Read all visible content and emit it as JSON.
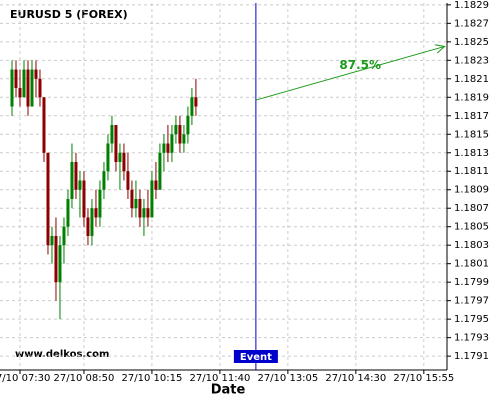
{
  "chart_data": {
    "type": "candlestick",
    "title": "EURUSD 5 (FOREX)",
    "xlabel": "Date",
    "watermark": "www.delkos.com",
    "x": [
      440,
      445,
      450,
      455,
      460,
      465,
      470,
      475,
      480,
      485,
      490,
      495,
      500,
      505,
      510,
      515,
      520,
      525,
      530,
      535,
      540,
      545,
      550,
      555,
      560,
      565,
      570,
      575,
      580,
      585,
      590,
      595,
      600,
      605,
      610,
      615,
      620,
      625,
      630,
      635,
      640,
      645,
      650,
      655,
      660,
      665,
      670
    ],
    "open": [
      1.1818,
      1.1822,
      1.182,
      1.1819,
      1.1822,
      1.1818,
      1.1822,
      1.1821,
      1.1819,
      1.1813,
      1.1803,
      1.1804,
      1.1799,
      1.1803,
      1.1805,
      1.1808,
      1.1812,
      1.1809,
      1.181,
      1.1806,
      1.1804,
      1.1807,
      1.1806,
      1.1809,
      1.1811,
      1.1814,
      1.1816,
      1.1812,
      1.1813,
      1.1811,
      1.1809,
      1.1807,
      1.1808,
      1.1806,
      1.1807,
      1.1806,
      1.181,
      1.1809,
      1.1813,
      1.1814,
      1.1813,
      1.1815,
      1.1816,
      1.1814,
      1.1815,
      1.1817,
      1.1819
    ],
    "high": [
      1.1823,
      1.1823,
      1.1822,
      1.1823,
      1.1823,
      1.1823,
      1.1823,
      1.1822,
      1.1819,
      1.1813,
      1.1805,
      1.1806,
      1.1804,
      1.1806,
      1.1809,
      1.1814,
      1.1813,
      1.1811,
      1.1811,
      1.1807,
      1.1808,
      1.1809,
      1.181,
      1.1812,
      1.1815,
      1.1817,
      1.1816,
      1.1814,
      1.1814,
      1.1813,
      1.181,
      1.181,
      1.1809,
      1.1808,
      1.1809,
      1.1811,
      1.1812,
      1.1814,
      1.1815,
      1.1816,
      1.1816,
      1.1817,
      1.1817,
      1.1816,
      1.1818,
      1.182,
      1.1821
    ],
    "low": [
      1.1817,
      1.1819,
      1.1818,
      1.1819,
      1.1817,
      1.1818,
      1.1819,
      1.1818,
      1.1812,
      1.1802,
      1.1801,
      1.1797,
      1.1795,
      1.1801,
      1.1804,
      1.1807,
      1.1808,
      1.1806,
      1.1805,
      1.1803,
      1.1803,
      1.1805,
      1.1805,
      1.1808,
      1.181,
      1.1813,
      1.1811,
      1.1809,
      1.181,
      1.1808,
      1.1806,
      1.1806,
      1.1805,
      1.1804,
      1.1805,
      1.1806,
      1.1808,
      1.1809,
      1.1811,
      1.1812,
      1.1812,
      1.1814,
      1.1813,
      1.1813,
      1.1814,
      1.1816,
      1.1817
    ],
    "close": [
      1.1822,
      1.182,
      1.1819,
      1.1822,
      1.1818,
      1.1822,
      1.1821,
      1.1819,
      1.1813,
      1.1803,
      1.1804,
      1.1799,
      1.1803,
      1.1805,
      1.1808,
      1.1812,
      1.1809,
      1.181,
      1.1806,
      1.1804,
      1.1807,
      1.1806,
      1.1809,
      1.1811,
      1.1814,
      1.1816,
      1.1812,
      1.1813,
      1.1811,
      1.1809,
      1.1807,
      1.1808,
      1.1806,
      1.1807,
      1.1806,
      1.181,
      1.1809,
      1.1813,
      1.1814,
      1.1813,
      1.1815,
      1.1816,
      1.1814,
      1.1815,
      1.1817,
      1.1819,
      1.1818
    ],
    "up_color": "#008000",
    "down_color": "#8b0000",
    "xlim": [
      425,
      984
    ],
    "ylim": [
      1.17895,
      1.18292
    ],
    "xticks": [
      {
        "value": 450,
        "label": "27/10 07:30"
      },
      {
        "value": 530,
        "label": "27/10 08:50"
      },
      {
        "value": 615,
        "label": "27/10 10:15"
      },
      {
        "value": 700,
        "label": "27/10 11:40"
      },
      {
        "value": 785,
        "label": "27/10 13:05"
      },
      {
        "value": 870,
        "label": "27/10 14:30"
      },
      {
        "value": 955,
        "label": "27/10 15:55"
      }
    ],
    "yticks": [
      1.1791,
      1.1793,
      1.1795,
      1.1797,
      1.1799,
      1.1801,
      1.1803,
      1.1805,
      1.1807,
      1.1809,
      1.1811,
      1.1813,
      1.1815,
      1.1817,
      1.1819,
      1.1821,
      1.1823,
      1.1825,
      1.1827,
      1.1829
    ],
    "grid": true,
    "event": {
      "x": 745,
      "label": "Event",
      "color": "#0000cc"
    },
    "arrow": {
      "x": [
        745,
        981
      ],
      "y": [
        1.18187,
        1.18245
      ],
      "label": "87.5%",
      "color": "#1a9a1a"
    }
  }
}
